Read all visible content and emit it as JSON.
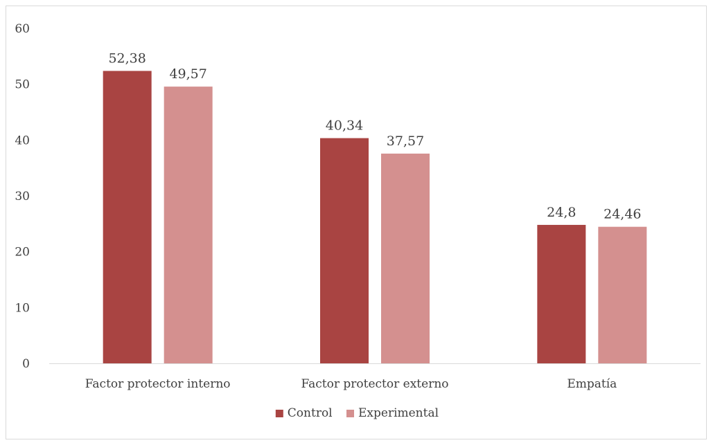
{
  "chart_data": {
    "type": "bar",
    "title": "",
    "xlabel": "",
    "ylabel": "",
    "categories": [
      "Factor protector interno",
      "Factor protector externo",
      "Empatía"
    ],
    "series": [
      {
        "name": "Control",
        "values": [
          52.38,
          40.34,
          24.8
        ],
        "labels": [
          "52,38",
          "40,34",
          "24,8"
        ],
        "color": "#a94442"
      },
      {
        "name": "Experimental",
        "values": [
          49.57,
          37.57,
          24.46
        ],
        "labels": [
          "49,57",
          "37,57",
          "24,46"
        ],
        "color": "#d4908f"
      }
    ],
    "ylim": [
      0,
      60
    ],
    "yticks": [
      "0",
      "10",
      "20",
      "30",
      "40",
      "50",
      "60"
    ],
    "grid": false,
    "legend_position": "bottom",
    "axis_color": "#d9d9d9",
    "text_color": "#404040"
  }
}
